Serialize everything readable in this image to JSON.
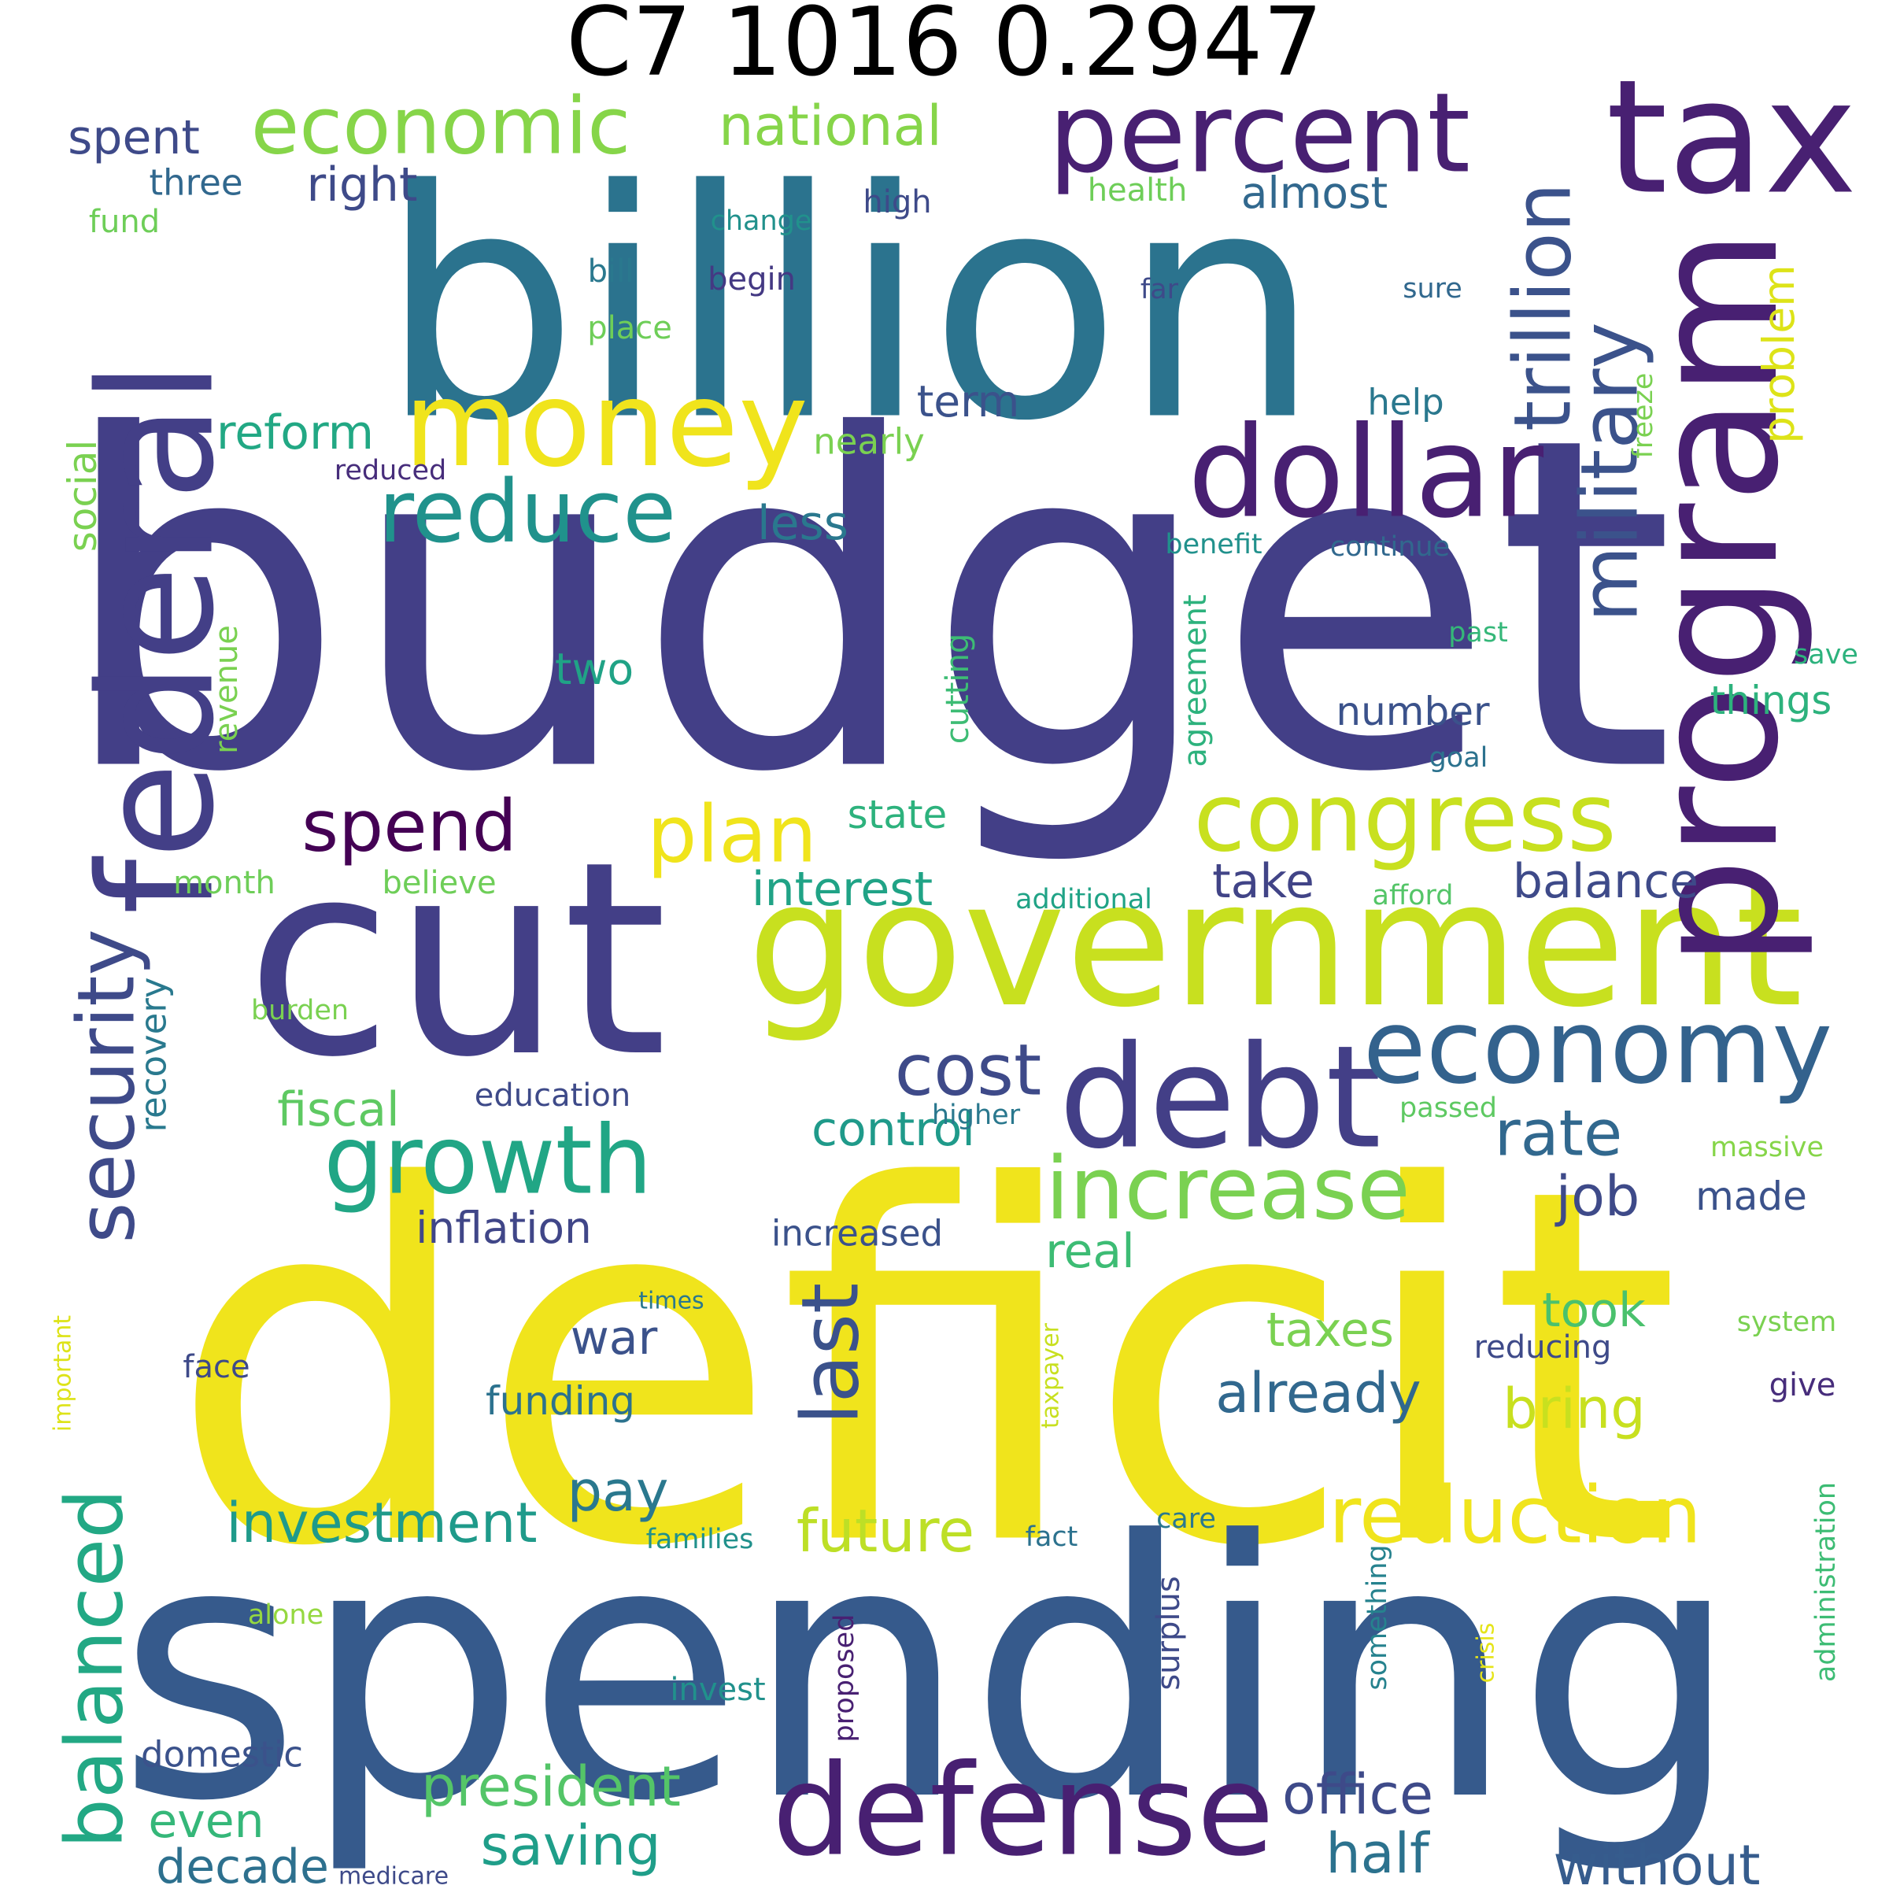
{
  "title": "C7 1016 0.2947",
  "words": [
    {
      "text": "deficit",
      "color": "#f0e41c",
      "rotate": false
    },
    {
      "text": "budget",
      "color": "#433f87",
      "rotate": false
    },
    {
      "text": "spending",
      "color": "#365a8c",
      "rotate": false
    },
    {
      "text": "billion",
      "color": "#2b738e",
      "rotate": false
    },
    {
      "text": "cut",
      "color": "#433f87",
      "rotate": false
    },
    {
      "text": "government",
      "color": "#c8e01f",
      "rotate": false
    },
    {
      "text": "federal",
      "color": "#433f87",
      "rotate": true
    },
    {
      "text": "program",
      "color": "#482072",
      "rotate": true
    },
    {
      "text": "tax",
      "color": "#482072",
      "rotate": false
    },
    {
      "text": "percent",
      "color": "#482072",
      "rotate": false
    },
    {
      "text": "dollar",
      "color": "#482072",
      "rotate": false
    },
    {
      "text": "money",
      "color": "#f0e41c",
      "rotate": false
    },
    {
      "text": "debt",
      "color": "#433f87",
      "rotate": false
    },
    {
      "text": "defense",
      "color": "#482072",
      "rotate": false
    },
    {
      "text": "congress",
      "color": "#c8e01f",
      "rotate": false
    },
    {
      "text": "economy",
      "color": "#33628d",
      "rotate": false
    },
    {
      "text": "increase",
      "color": "#7ad151",
      "rotate": false
    },
    {
      "text": "reduction",
      "color": "#f0e41c",
      "rotate": false
    },
    {
      "text": "growth",
      "color": "#21a685",
      "rotate": false
    },
    {
      "text": "reduce",
      "color": "#20928c",
      "rotate": false
    },
    {
      "text": "economic",
      "color": "#86d549",
      "rotate": false
    },
    {
      "text": "plan",
      "color": "#f0e41c",
      "rotate": false
    },
    {
      "text": "spend",
      "color": "#440154",
      "rotate": false
    },
    {
      "text": "trillion",
      "color": "#3b528b",
      "rotate": true
    },
    {
      "text": "military",
      "color": "#3b528b",
      "rotate": true
    },
    {
      "text": "security",
      "color": "#3e4a89",
      "rotate": true
    },
    {
      "text": "balanced",
      "color": "#22a884",
      "rotate": true
    },
    {
      "text": "last",
      "color": "#3b528b",
      "rotate": true
    },
    {
      "text": "cost",
      "color": "#3e4a89",
      "rotate": false
    },
    {
      "text": "national",
      "color": "#86d549",
      "rotate": false
    },
    {
      "text": "rate",
      "color": "#31688e",
      "rotate": false
    },
    {
      "text": "job",
      "color": "#3e4a89",
      "rotate": false
    },
    {
      "text": "president",
      "color": "#54c568",
      "rotate": false
    },
    {
      "text": "investment",
      "color": "#1f9a8a",
      "rotate": false
    },
    {
      "text": "already",
      "color": "#31688e",
      "rotate": false
    },
    {
      "text": "future",
      "color": "#bddf26",
      "rotate": false
    },
    {
      "text": "office",
      "color": "#3e4a89",
      "rotate": false
    },
    {
      "text": "without",
      "color": "#365c8d",
      "rotate": false
    },
    {
      "text": "saving",
      "color": "#1f9e89",
      "rotate": false
    },
    {
      "text": "half",
      "color": "#2c728e",
      "rotate": false
    },
    {
      "text": "decade",
      "color": "#2d708e",
      "rotate": false
    },
    {
      "text": "pay",
      "color": "#2a788e",
      "rotate": false
    },
    {
      "text": "bring",
      "color": "#c8e01f",
      "rotate": false
    },
    {
      "text": "balance",
      "color": "#3e4a89",
      "rotate": false
    },
    {
      "text": "fiscal",
      "color": "#5ec962",
      "rotate": false
    },
    {
      "text": "control",
      "color": "#1f9a8a",
      "rotate": false
    },
    {
      "text": "interest",
      "color": "#20a386",
      "rotate": false
    },
    {
      "text": "take",
      "color": "#414487",
      "rotate": false
    },
    {
      "text": "taxes",
      "color": "#7ad151",
      "rotate": false
    },
    {
      "text": "took",
      "color": "#4ac16d",
      "rotate": false
    },
    {
      "text": "spent",
      "color": "#3e4a89",
      "rotate": false
    },
    {
      "text": "right",
      "color": "#3e4a89",
      "rotate": false
    },
    {
      "text": "almost",
      "color": "#31688e",
      "rotate": false
    },
    {
      "text": "reform",
      "color": "#22a884",
      "rotate": false
    },
    {
      "text": "term",
      "color": "#3b528b",
      "rotate": false
    },
    {
      "text": "less",
      "color": "#2a788e",
      "rotate": false
    },
    {
      "text": "social",
      "color": "#7ad151",
      "rotate": true
    },
    {
      "text": "problem",
      "color": "#dde318",
      "rotate": true
    },
    {
      "text": "two",
      "color": "#20a386",
      "rotate": false
    },
    {
      "text": "state",
      "color": "#2db27d",
      "rotate": false
    },
    {
      "text": "inflation",
      "color": "#404688",
      "rotate": false
    },
    {
      "text": "recovery",
      "color": "#29798e",
      "rotate": true
    },
    {
      "text": "war",
      "color": "#3b528b",
      "rotate": false
    },
    {
      "text": "funding",
      "color": "#2c728e",
      "rotate": false
    },
    {
      "text": "real",
      "color": "#3dbc74",
      "rotate": false
    },
    {
      "text": "even",
      "color": "#35b779",
      "rotate": false
    },
    {
      "text": "domestic",
      "color": "#3b528b",
      "rotate": false
    },
    {
      "text": "made",
      "color": "#3b528b",
      "rotate": false
    },
    {
      "text": "things",
      "color": "#2db27d",
      "rotate": false
    },
    {
      "text": "number",
      "color": "#3b528b",
      "rotate": false
    },
    {
      "text": "three",
      "color": "#31688e",
      "rotate": false
    },
    {
      "text": "fund",
      "color": "#6ece58",
      "rotate": false
    },
    {
      "text": "help",
      "color": "#2a788e",
      "rotate": false
    },
    {
      "text": "nearly",
      "color": "#7ad151",
      "rotate": false
    },
    {
      "text": "high",
      "color": "#3e4a89",
      "rotate": false
    },
    {
      "text": "health",
      "color": "#6ece58",
      "rotate": false
    },
    {
      "text": "begin",
      "color": "#443983",
      "rotate": false
    },
    {
      "text": "bill",
      "color": "#2a788e",
      "rotate": false
    },
    {
      "text": "change",
      "color": "#21918c",
      "rotate": false
    },
    {
      "text": "place",
      "color": "#6ece58",
      "rotate": false
    },
    {
      "text": "far",
      "color": "#3e4a89",
      "rotate": false
    },
    {
      "text": "sure",
      "color": "#31688e",
      "rotate": false
    },
    {
      "text": "freeze",
      "color": "#7ad151",
      "rotate": true
    },
    {
      "text": "reduced",
      "color": "#472d7b",
      "rotate": false
    },
    {
      "text": "benefit",
      "color": "#21918c",
      "rotate": false
    },
    {
      "text": "continue",
      "color": "#31688e",
      "rotate": false
    },
    {
      "text": "cutting",
      "color": "#3dbc74",
      "rotate": true
    },
    {
      "text": "past",
      "color": "#35b779",
      "rotate": false
    },
    {
      "text": "save",
      "color": "#2db27d",
      "rotate": false
    },
    {
      "text": "revenue",
      "color": "#7ad151",
      "rotate": true
    },
    {
      "text": "agreement",
      "color": "#2db27d",
      "rotate": true
    },
    {
      "text": "goal",
      "color": "#2c728e",
      "rotate": false
    },
    {
      "text": "month",
      "color": "#6ece58",
      "rotate": false
    },
    {
      "text": "believe",
      "color": "#6ece58",
      "rotate": false
    },
    {
      "text": "additional",
      "color": "#20a386",
      "rotate": false
    },
    {
      "text": "afford",
      "color": "#54c568",
      "rotate": false
    },
    {
      "text": "burden",
      "color": "#7ad151",
      "rotate": false
    },
    {
      "text": "education",
      "color": "#3e4a89",
      "rotate": false
    },
    {
      "text": "higher",
      "color": "#2a788e",
      "rotate": false
    },
    {
      "text": "passed",
      "color": "#5ec962",
      "rotate": false
    },
    {
      "text": "massive",
      "color": "#86d549",
      "rotate": false
    },
    {
      "text": "increased",
      "color": "#3b528b",
      "rotate": false
    },
    {
      "text": "times",
      "color": "#2a788e",
      "rotate": false
    },
    {
      "text": "important",
      "color": "#dde318",
      "rotate": true
    },
    {
      "text": "system",
      "color": "#7ad151",
      "rotate": false
    },
    {
      "text": "reducing",
      "color": "#3e4a89",
      "rotate": false
    },
    {
      "text": "give",
      "color": "#472d7b",
      "rotate": false
    },
    {
      "text": "face",
      "color": "#3e4a89",
      "rotate": false
    },
    {
      "text": "taxpayer",
      "color": "#c8e01f",
      "rotate": true
    },
    {
      "text": "care",
      "color": "#2a788e",
      "rotate": false
    },
    {
      "text": "fact",
      "color": "#2c728e",
      "rotate": false
    },
    {
      "text": "families",
      "color": "#21918c",
      "rotate": false
    },
    {
      "text": "administration",
      "color": "#3dbc74",
      "rotate": true
    },
    {
      "text": "surplus",
      "color": "#3e4a89",
      "rotate": true
    },
    {
      "text": "something",
      "color": "#26828e",
      "rotate": true
    },
    {
      "text": "crisis",
      "color": "#e5e419",
      "rotate": true
    },
    {
      "text": "proposed",
      "color": "#482072",
      "rotate": true
    },
    {
      "text": "alone",
      "color": "#95d840",
      "rotate": false
    },
    {
      "text": "invest",
      "color": "#21918c",
      "rotate": false
    },
    {
      "text": "medicare",
      "color": "#3e4a89",
      "rotate": false
    }
  ]
}
